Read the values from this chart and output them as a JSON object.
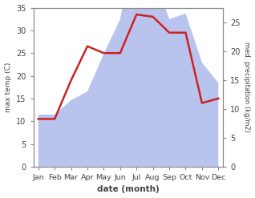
{
  "months": [
    "Jan",
    "Feb",
    "Mar",
    "Apr",
    "May",
    "Jun",
    "Jul",
    "Aug",
    "Sep",
    "Oct",
    "Nov",
    "Dec"
  ],
  "temp": [
    10.5,
    10.5,
    19.0,
    26.5,
    25.0,
    25.0,
    33.5,
    33.0,
    29.5,
    29.5,
    14.0,
    15.0
  ],
  "precip": [
    9.0,
    9.0,
    11.5,
    13.0,
    19.5,
    25.5,
    40.0,
    34.0,
    25.5,
    26.5,
    18.0,
    14.5
  ],
  "temp_color": "#cc2222",
  "precip_color": "#b8c4ee",
  "temp_ylim": [
    0,
    35
  ],
  "right_ylim": [
    0,
    27.5
  ],
  "left_yticks": [
    0,
    5,
    10,
    15,
    20,
    25,
    30,
    35
  ],
  "right_yticks": [
    0,
    5,
    10,
    15,
    20,
    25
  ],
  "ylabel_left": "max temp (C)",
  "ylabel_right": "med. precipitation (kg/m2)",
  "xlabel": "date (month)",
  "bg_color": "#ffffff",
  "spine_color": "#888888",
  "tick_color": "#444444",
  "scale_factor": 1.4
}
